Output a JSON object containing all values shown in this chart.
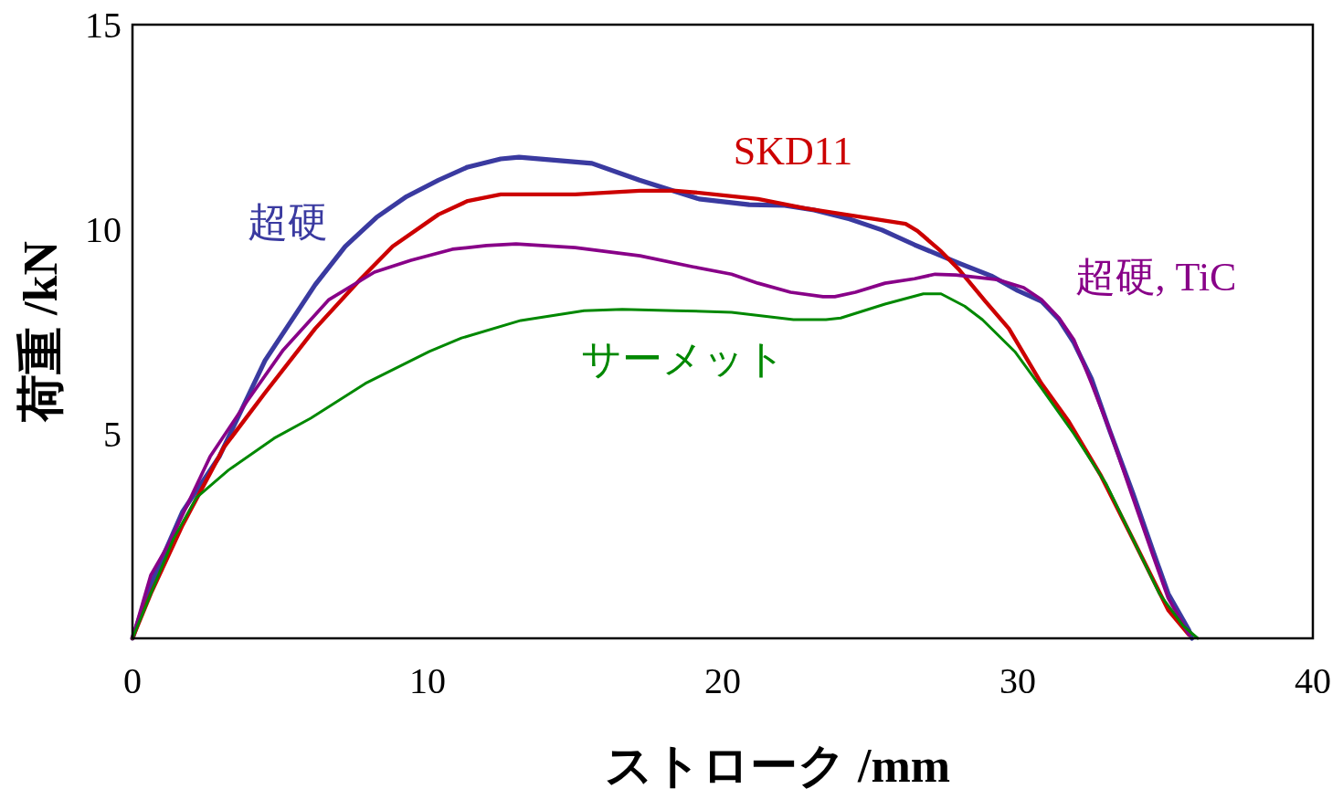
{
  "chart_data": {
    "type": "line",
    "xlabel": "ストローク /mm",
    "ylabel": "荷重 /kN",
    "xlim": [
      0,
      40
    ],
    "ylim": [
      0,
      15
    ],
    "xticks": [
      0,
      10,
      20,
      30,
      40
    ],
    "yticks": [
      5,
      10,
      15
    ],
    "grid": false,
    "legend": false,
    "marker": "none",
    "line_style": "solid",
    "series": [
      {
        "name": "超硬",
        "color": "#3a3aa0",
        "x": [
          0,
          0.62,
          1.7,
          2.94,
          4.49,
          6.19,
          7.21,
          8.27,
          9.29,
          10.37,
          11.36,
          12.48,
          13.1,
          15.57,
          17.18,
          19.2,
          20.9,
          22.1,
          23.1,
          24.3,
          25.4,
          26.5,
          28.0,
          29.1,
          30.0,
          30.8,
          31.4,
          31.9,
          32.5,
          33.1,
          33.9,
          34.6,
          35.1,
          35.8,
          35.9
        ],
        "values": [
          0,
          1.32,
          3.1,
          4.44,
          6.79,
          8.64,
          9.58,
          10.29,
          10.8,
          11.2,
          11.52,
          11.72,
          11.76,
          11.61,
          11.2,
          10.74,
          10.6,
          10.58,
          10.47,
          10.25,
          9.98,
          9.62,
          9.17,
          8.86,
          8.5,
          8.24,
          7.79,
          7.23,
          6.34,
          5.11,
          3.55,
          2.1,
          1.09,
          0.2,
          0
        ]
      },
      {
        "name": "SKD11",
        "color": "#cc0000",
        "x": [
          0,
          0.62,
          1.7,
          3.1,
          4.49,
          6.19,
          7.74,
          8.82,
          10.37,
          11.36,
          12.48,
          15.0,
          17.2,
          18.4,
          19.2,
          21.2,
          22.8,
          24.6,
          26.2,
          26.6,
          27.4,
          28.0,
          28.9,
          29.7,
          30.8,
          31.7,
          32.8,
          33.9,
          35.1,
          35.8
        ],
        "values": [
          0,
          1.09,
          2.77,
          4.67,
          6.0,
          7.57,
          8.79,
          9.58,
          10.36,
          10.69,
          10.85,
          10.85,
          10.94,
          10.94,
          10.89,
          10.74,
          10.51,
          10.31,
          10.13,
          9.96,
          9.46,
          9.02,
          8.24,
          7.57,
          6.23,
          5.33,
          4.0,
          2.43,
          0.69,
          0.09
        ]
      },
      {
        "name": "超硬, TiC",
        "color": "#880088",
        "x": [
          0,
          0.62,
          1.24,
          2.63,
          3.87,
          5.11,
          6.66,
          8.2,
          9.44,
          10.84,
          12.0,
          13.0,
          15.0,
          17.2,
          19.0,
          20.3,
          21.2,
          22.3,
          23.4,
          23.8,
          24.5,
          25.5,
          26.5,
          27.2,
          27.9,
          29.3,
          30.2,
          30.8,
          31.4,
          31.9,
          32.5,
          33.1,
          33.9,
          34.6,
          35.1,
          35.8
        ],
        "values": [
          0,
          1.54,
          2.32,
          4.44,
          5.78,
          7.05,
          8.28,
          8.95,
          9.24,
          9.51,
          9.6,
          9.64,
          9.55,
          9.35,
          9.08,
          8.9,
          8.68,
          8.46,
          8.35,
          8.35,
          8.46,
          8.68,
          8.79,
          8.9,
          8.88,
          8.77,
          8.57,
          8.28,
          7.83,
          7.3,
          6.23,
          5.11,
          3.44,
          1.99,
          0.98,
          0.09
        ]
      },
      {
        "name": "サーメット",
        "color": "#008800",
        "x": [
          0,
          0.62,
          1.39,
          2.17,
          3.25,
          4.8,
          6.04,
          7.89,
          10.06,
          11.15,
          13.16,
          15.3,
          16.6,
          18.4,
          20.3,
          22.4,
          23.5,
          24.0,
          25.5,
          26.8,
          27.4,
          28.2,
          28.8,
          29.9,
          30.8,
          31.9,
          33.0,
          33.9,
          34.8,
          35.6,
          36.1
        ],
        "values": [
          0,
          1.09,
          2.43,
          3.44,
          4.11,
          4.89,
          5.38,
          6.23,
          7.01,
          7.34,
          7.77,
          8.01,
          8.04,
          8.01,
          7.97,
          7.79,
          7.79,
          7.83,
          8.17,
          8.42,
          8.42,
          8.12,
          7.79,
          7.01,
          6.12,
          5.0,
          3.77,
          2.43,
          1.09,
          0.31,
          0
        ]
      }
    ]
  }
}
